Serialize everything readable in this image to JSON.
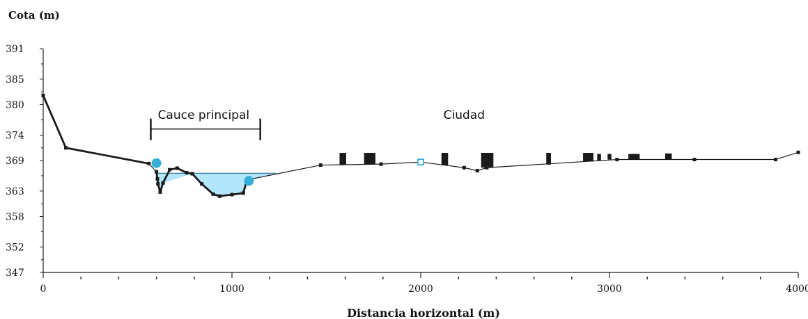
{
  "chart_data": {
    "type": "line",
    "ylabel": "Cota (m)",
    "xlabel": "Distancia horizontal (m)",
    "xlim": [
      0,
      4000
    ],
    "ylim": [
      347,
      391
    ],
    "x_ticks": [
      0,
      1000,
      2000,
      3000,
      4000
    ],
    "y_ticks": [
      391,
      385,
      380,
      374,
      369,
      363,
      358,
      352,
      347
    ],
    "annotations": [
      {
        "text": "Cauce principal",
        "x": 850,
        "y": 378
      },
      {
        "text": "Ciudad",
        "x": 2230,
        "y": 378
      }
    ],
    "channel_span": {
      "x_start": 570,
      "x_end": 1150,
      "y": 375.2
    },
    "series": [
      {
        "values": [
          [
            0,
            381.8
          ],
          [
            120,
            371.5
          ],
          [
            560,
            368.4
          ],
          [
            600,
            366.8
          ],
          [
            605,
            365.4
          ],
          [
            608,
            364.4
          ],
          [
            620,
            362.8
          ],
          [
            635,
            364.6
          ],
          [
            670,
            367.2
          ],
          [
            710,
            367.5
          ],
          [
            760,
            366.6
          ],
          [
            790,
            366.4
          ],
          [
            840,
            364.4
          ],
          [
            900,
            362.4
          ],
          [
            935,
            362.0
          ],
          [
            1000,
            362.3
          ],
          [
            1060,
            362.6
          ],
          [
            1080,
            365.2
          ],
          [
            1470,
            368.1
          ],
          [
            1790,
            368.3
          ],
          [
            2000,
            368.7
          ],
          [
            2230,
            367.6
          ],
          [
            2300,
            367.0
          ],
          [
            2350,
            367.6
          ],
          [
            3040,
            369.2
          ],
          [
            3450,
            369.2
          ],
          [
            3880,
            369.2
          ],
          [
            4000,
            370.6
          ]
        ]
      }
    ],
    "water": {
      "level": 366.5,
      "x_start": 600,
      "x_end": 1235
    },
    "bank_markers": [
      {
        "x": 600,
        "y": 368.5,
        "color": "#33afd8"
      },
      {
        "x": 1090,
        "y": 365.0,
        "color": "#33afd8"
      }
    ],
    "station_marker": {
      "x": 2000,
      "y": 368.7
    },
    "buildings": [
      {
        "x0": 1570,
        "x1": 1605,
        "y0": 368.2,
        "y1": 370.5
      },
      {
        "x0": 1700,
        "x1": 1760,
        "y0": 368.3,
        "y1": 370.5
      },
      {
        "x0": 2110,
        "x1": 2145,
        "y0": 368.1,
        "y1": 370.5
      },
      {
        "x0": 2320,
        "x1": 2385,
        "y0": 367.6,
        "y1": 370.5
      },
      {
        "x0": 2665,
        "x1": 2690,
        "y0": 368.2,
        "y1": 370.5
      },
      {
        "x0": 2860,
        "x1": 2915,
        "y0": 368.8,
        "y1": 370.5
      },
      {
        "x0": 2935,
        "x1": 2955,
        "y0": 369.0,
        "y1": 370.3
      },
      {
        "x0": 2990,
        "x1": 3010,
        "y0": 369.2,
        "y1": 370.3
      },
      {
        "x0": 3100,
        "x1": 3160,
        "y0": 369.2,
        "y1": 370.3
      },
      {
        "x0": 3295,
        "x1": 3330,
        "y0": 369.2,
        "y1": 370.4
      }
    ],
    "colors": {
      "line": "#1a1a1a",
      "water_fill": "#b3e5fb",
      "water_line": "#2d6f8f",
      "markers": "#33afd8",
      "buildings": "#1a1a1a"
    }
  }
}
